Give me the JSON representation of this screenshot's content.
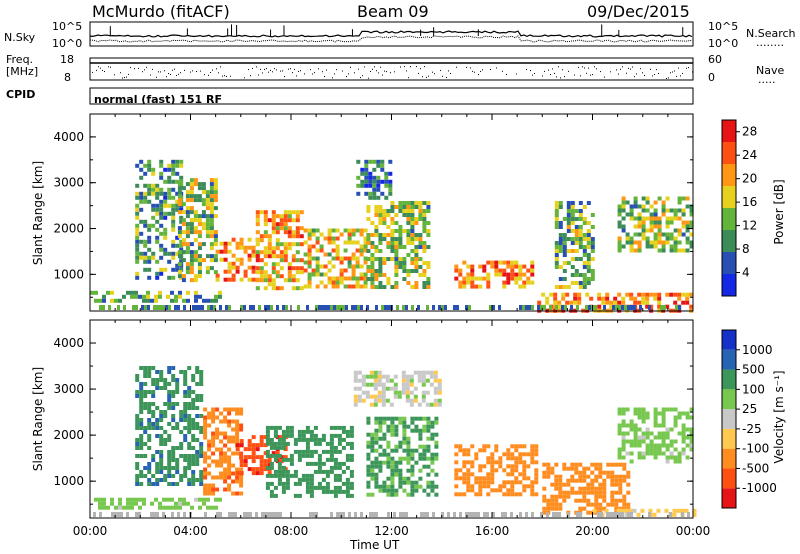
{
  "header": {
    "station": "McMurdo (fitACF)",
    "beam": "Beam 09",
    "date": "09/Dec/2015"
  },
  "noise_panel": {
    "left_label": "N.Sky",
    "right_label": "N.Search",
    "right_label_dots": "........",
    "ticks_left": [
      "10^5",
      "10^0"
    ],
    "ticks_right": [
      "10^5",
      "10^0"
    ]
  },
  "freq_panel": {
    "left_label_1": "Freq.",
    "left_label_2": "[MHz]",
    "ticks_left": [
      "18",
      "8"
    ],
    "ticks_right": [
      "60",
      "0"
    ],
    "right_label": "Nave",
    "right_label_dots": "....."
  },
  "cpid": {
    "label": "CPID",
    "value": "normal (fast) 151 RF"
  },
  "colors": {
    "power": [
      "#1428e6",
      "#2850b4",
      "#3c8c5a",
      "#64b43c",
      "#e6d21e",
      "#ff9614",
      "#ff5014",
      "#e61414"
    ],
    "velocity": [
      "#e61414",
      "#ff5014",
      "#ff8c1e",
      "#ffc850",
      "#c8c8c8",
      "#78c850",
      "#3c965a",
      "#2864b4",
      "#1432c8"
    ],
    "ground": "#b4b4b4"
  },
  "chart_data": [
    {
      "type": "heatmap",
      "panel": "power",
      "ylabel": "Slant Range [km]",
      "xlabel": "",
      "ylim": [
        200,
        4500
      ],
      "xlim": [
        0,
        24
      ],
      "yticks": [
        "1000",
        "2000",
        "3000",
        "4000"
      ],
      "colorbar_label": "Power [dB]",
      "colorbar_ticks": [
        "4",
        "8",
        "12",
        "16",
        "20",
        "24",
        "28"
      ],
      "colorbar_range": [
        0,
        30
      ],
      "echo_regions": [
        {
          "t": [
            0.0,
            5.2
          ],
          "r": [
            420,
            640
          ],
          "level": 12
        },
        {
          "t": [
            1.8,
            3.6
          ],
          "r": [
            900,
            3500
          ],
          "level": 10
        },
        {
          "t": [
            3.5,
            5.0
          ],
          "r": [
            900,
            3100
          ],
          "level": 14
        },
        {
          "t": [
            5.0,
            6.6
          ],
          "r": [
            900,
            1800
          ],
          "level": 22
        },
        {
          "t": [
            6.6,
            8.5
          ],
          "r": [
            700,
            2400
          ],
          "level": 20
        },
        {
          "t": [
            8.5,
            11.0
          ],
          "r": [
            700,
            2000
          ],
          "level": 18
        },
        {
          "t": [
            10.6,
            12.0
          ],
          "r": [
            2700,
            3500
          ],
          "level": 8
        },
        {
          "t": [
            11.0,
            13.5
          ],
          "r": [
            700,
            2600
          ],
          "level": 14
        },
        {
          "t": [
            14.5,
            17.6
          ],
          "r": [
            700,
            1300
          ],
          "level": 22
        },
        {
          "t": [
            18.5,
            20.0
          ],
          "r": [
            700,
            2600
          ],
          "level": 12
        },
        {
          "t": [
            17.8,
            24.0
          ],
          "r": [
            250,
            600
          ],
          "level": 22
        },
        {
          "t": [
            21.0,
            24.0
          ],
          "r": [
            1500,
            2700
          ],
          "level": 14
        }
      ]
    },
    {
      "type": "heatmap",
      "panel": "velocity",
      "ylabel": "Slant Range [km]",
      "xlabel": "Time UT",
      "ylim": [
        200,
        4500
      ],
      "xlim": [
        0,
        24
      ],
      "yticks": [
        "1000",
        "2000",
        "3000",
        "4000"
      ],
      "xticks": [
        "00:00",
        "04:00",
        "08:00",
        "12:00",
        "16:00",
        "20:00",
        "00:00"
      ],
      "colorbar_label": "Velocity [m s⁻¹]",
      "colorbar_ticks": [
        "1000",
        "500",
        "100",
        "25",
        "-25",
        "-100",
        "-500",
        "-1000"
      ],
      "echo_regions": [
        {
          "t": [
            0.0,
            5.2
          ],
          "r": [
            420,
            640
          ],
          "v": 60
        },
        {
          "t": [
            1.8,
            4.5
          ],
          "r": [
            900,
            3500
          ],
          "v": 400
        },
        {
          "t": [
            4.5,
            6.0
          ],
          "r": [
            700,
            2600
          ],
          "v": -400
        },
        {
          "t": [
            5.8,
            7.8
          ],
          "r": [
            1200,
            2000
          ],
          "v": -800
        },
        {
          "t": [
            7.0,
            10.5
          ],
          "r": [
            700,
            2200
          ],
          "v": 200
        },
        {
          "t": [
            10.5,
            14.0
          ],
          "r": [
            2700,
            3400
          ],
          "v": 0
        },
        {
          "t": [
            11.0,
            13.8
          ],
          "r": [
            700,
            2400
          ],
          "v": 120
        },
        {
          "t": [
            14.5,
            17.8
          ],
          "r": [
            700,
            1800
          ],
          "v": -200
        },
        {
          "t": [
            18.0,
            21.5
          ],
          "r": [
            300,
            1400
          ],
          "v": -250
        },
        {
          "t": [
            20.0,
            24.0
          ],
          "r": [
            250,
            400
          ],
          "v": -60
        },
        {
          "t": [
            21.0,
            24.0
          ],
          "r": [
            1400,
            2600
          ],
          "v": 60
        }
      ]
    }
  ]
}
